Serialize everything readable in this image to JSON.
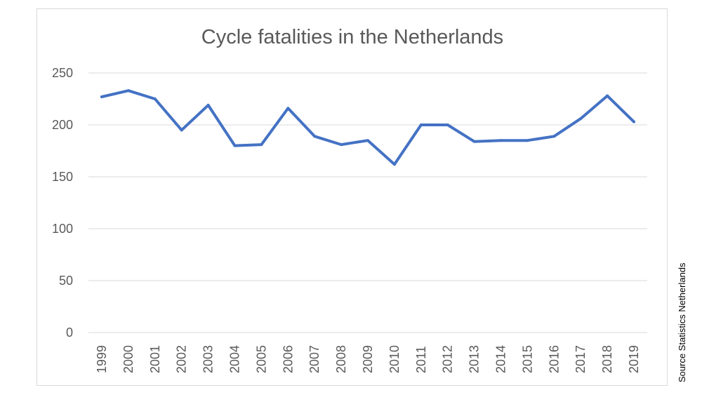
{
  "chart_data": {
    "type": "line",
    "title": "Cycle fatalities in the Netherlands",
    "xlabel": "",
    "ylabel": "",
    "x": [
      "1999",
      "2000",
      "2001",
      "2002",
      "2003",
      "2004",
      "2005",
      "2006",
      "2007",
      "2008",
      "2009",
      "2010",
      "2011",
      "2012",
      "2013",
      "2014",
      "2015",
      "2016",
      "2017",
      "2018",
      "2019"
    ],
    "series": [
      {
        "values": [
          227,
          233,
          225,
          195,
          219,
          180,
          181,
          216,
          189,
          181,
          185,
          162,
          200,
          200,
          184,
          185,
          185,
          189,
          206,
          228,
          203
        ]
      }
    ],
    "yticks": [
      "0",
      "50",
      "100",
      "150",
      "200",
      "250"
    ],
    "ylim": [
      0,
      250
    ],
    "grid": "horizontal",
    "legend": "none",
    "line_color": "#4472C4",
    "grid_color": "#D9D9D9",
    "border_color": "#D9D9D9"
  },
  "source_note": "Source Statistics Netherlands"
}
